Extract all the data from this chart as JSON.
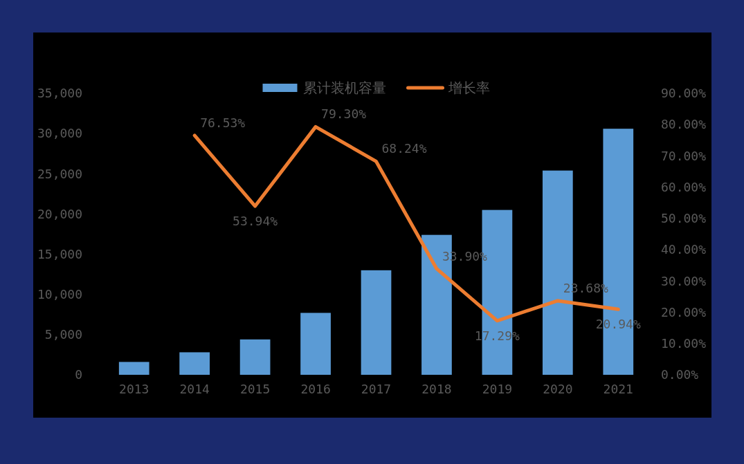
{
  "chart_data": {
    "type": "bar",
    "categories": [
      "2013",
      "2014",
      "2015",
      "2016",
      "2017",
      "2018",
      "2019",
      "2020",
      "2021"
    ],
    "series": [
      {
        "name": "累计装机容量",
        "color": "#5b9bd5",
        "values": [
          1600,
          2800,
          4400,
          7700,
          13000,
          17400,
          20500,
          25400,
          30600
        ]
      },
      {
        "name": "增长率",
        "type": "line",
        "axis": "y2",
        "color": "#ed7d31",
        "values": [
          null,
          76.53,
          53.94,
          79.3,
          68.24,
          33.9,
          17.29,
          23.68,
          20.94
        ],
        "value_labels": [
          null,
          "76.53%",
          "53.94%",
          "79.30%",
          "68.24%",
          "33.90%",
          "17.29%",
          "23.68%",
          "20.94%"
        ]
      }
    ],
    "ylim": [
      0,
      35000
    ],
    "yticks": [
      0,
      {
        "value": 5000,
        "label": "5,000"
      },
      {
        "value": 10000,
        "label": "10,000"
      },
      {
        "value": 15000,
        "label": "15,000"
      },
      {
        "value": 20000,
        "label": "20,000"
      },
      {
        "value": 25000,
        "label": "25,000"
      },
      {
        "value": 30000,
        "label": "30,000"
      },
      {
        "value": 35000,
        "label": "35,000"
      }
    ],
    "y2lim": [
      0,
      90
    ],
    "y2ticks": [
      {
        "value": 0,
        "label": "0.00%"
      },
      {
        "value": 10,
        "label": "10.00%"
      },
      {
        "value": 20,
        "label": "20.00%"
      },
      {
        "value": 30,
        "label": "30.00%"
      },
      {
        "value": 40,
        "label": "40.00%"
      },
      {
        "value": 50,
        "label": "50.00%"
      },
      {
        "value": 60,
        "label": "60.00%"
      },
      {
        "value": 70,
        "label": "70.00%"
      },
      {
        "value": 80,
        "label": "80.00%"
      },
      {
        "value": 90,
        "label": "90.00%"
      }
    ],
    "legend": "top",
    "grid": false
  }
}
